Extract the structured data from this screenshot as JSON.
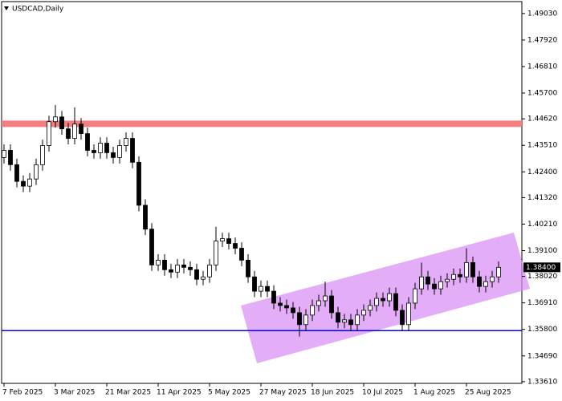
{
  "chart_data": {
    "type": "candlestick",
    "title": "USDCAD,Daily",
    "x": [
      "7 Feb 2025",
      null,
      null,
      null,
      null,
      null,
      null,
      null,
      "3 Mar 2025",
      null,
      null,
      null,
      null,
      null,
      null,
      null,
      "21 Mar 2025",
      null,
      null,
      null,
      null,
      null,
      null,
      null,
      "11 Apr 2025",
      null,
      null,
      null,
      null,
      null,
      null,
      null,
      "5 May 2025",
      null,
      null,
      null,
      null,
      null,
      null,
      null,
      "27 May 2025",
      null,
      null,
      null,
      null,
      null,
      null,
      null,
      "18 Jun 2025",
      null,
      null,
      null,
      null,
      null,
      null,
      null,
      "10 Jul 2025",
      null,
      null,
      null,
      null,
      null,
      null,
      null,
      "1 Aug 2025",
      null,
      null,
      null,
      null,
      null,
      null,
      null,
      "25 Aug 2025",
      null,
      null,
      null,
      null,
      null
    ],
    "open": [
      1.43,
      1.433,
      1.427,
      1.42,
      1.418,
      1.421,
      1.427,
      1.435,
      1.445,
      1.447,
      1.442,
      1.438,
      1.444,
      1.44,
      1.433,
      1.432,
      1.436,
      1.432,
      1.43,
      1.435,
      1.438,
      1.428,
      1.41,
      1.4,
      1.385,
      1.387,
      1.383,
      1.382,
      1.385,
      1.384,
      1.383,
      1.379,
      1.38,
      1.385,
      1.395,
      1.396,
      1.394,
      1.392,
      1.387,
      1.38,
      1.374,
      1.376,
      1.374,
      1.369,
      1.368,
      1.367,
      1.365,
      1.36,
      1.364,
      1.368,
      1.37,
      1.372,
      1.365,
      1.361,
      1.362,
      1.36,
      1.364,
      1.366,
      1.368,
      1.371,
      1.37,
      1.373,
      1.366,
      1.36,
      1.369,
      1.375,
      1.38,
      1.377,
      1.375,
      1.378,
      1.379,
      1.381,
      1.38,
      1.386,
      1.38,
      1.376,
      1.378,
      1.38
    ],
    "high": [
      1.4355,
      1.4355,
      1.4295,
      1.4225,
      1.4235,
      1.4295,
      1.4375,
      1.4475,
      1.452,
      1.4495,
      1.4445,
      1.451,
      1.4465,
      1.4425,
      1.4355,
      1.4385,
      1.4385,
      1.4345,
      1.4375,
      1.4405,
      1.4405,
      1.4305,
      1.4125,
      1.4025,
      1.3895,
      1.3895,
      1.3855,
      1.3875,
      1.3875,
      1.3865,
      1.3855,
      1.3825,
      1.3875,
      1.401,
      1.3985,
      1.3985,
      1.3965,
      1.3945,
      1.3895,
      1.3825,
      1.3785,
      1.3785,
      1.3765,
      1.3715,
      1.3705,
      1.3695,
      1.3675,
      1.3665,
      1.3705,
      1.3725,
      1.378,
      1.3745,
      1.3675,
      1.3645,
      1.3645,
      1.3665,
      1.3685,
      1.3705,
      1.3735,
      1.3735,
      1.3755,
      1.3755,
      1.3685,
      1.3715,
      1.3775,
      1.386,
      1.3825,
      1.3795,
      1.3805,
      1.3815,
      1.3835,
      1.3835,
      1.392,
      1.3885,
      1.3825,
      1.3805,
      1.3825,
      1.3865
    ],
    "low": [
      1.4275,
      1.4245,
      1.4175,
      1.4155,
      1.4155,
      1.4185,
      1.4245,
      1.4325,
      1.4425,
      1.4395,
      1.4355,
      1.4355,
      1.4375,
      1.4305,
      1.4295,
      1.4295,
      1.4295,
      1.4275,
      1.4275,
      1.4325,
      1.4255,
      1.4075,
      1.3975,
      1.3825,
      1.3825,
      1.3805,
      1.3795,
      1.3795,
      1.3815,
      1.3805,
      1.3765,
      1.3765,
      1.3775,
      1.3825,
      1.3925,
      1.3915,
      1.3895,
      1.3845,
      1.3775,
      1.3715,
      1.3715,
      1.3715,
      1.3665,
      1.3655,
      1.3645,
      1.3625,
      1.355,
      1.3575,
      1.3615,
      1.3655,
      1.3675,
      1.3625,
      1.3585,
      1.3585,
      1.3575,
      1.3575,
      1.3615,
      1.3635,
      1.3655,
      1.3675,
      1.3675,
      1.3635,
      1.3575,
      1.3575,
      1.3665,
      1.3725,
      1.3745,
      1.3725,
      1.3725,
      1.3755,
      1.3765,
      1.3775,
      1.3775,
      1.3775,
      1.3735,
      1.3735,
      1.3755,
      1.3775
    ],
    "close": [
      1.433,
      1.427,
      1.42,
      1.418,
      1.421,
      1.427,
      1.435,
      1.445,
      1.447,
      1.442,
      1.438,
      1.444,
      1.44,
      1.433,
      1.432,
      1.436,
      1.432,
      1.43,
      1.435,
      1.438,
      1.428,
      1.41,
      1.4,
      1.385,
      1.387,
      1.383,
      1.382,
      1.385,
      1.384,
      1.383,
      1.379,
      1.38,
      1.385,
      1.395,
      1.396,
      1.394,
      1.392,
      1.387,
      1.38,
      1.374,
      1.376,
      1.374,
      1.369,
      1.368,
      1.367,
      1.365,
      1.36,
      1.364,
      1.368,
      1.37,
      1.372,
      1.365,
      1.361,
      1.362,
      1.36,
      1.364,
      1.366,
      1.368,
      1.371,
      1.37,
      1.373,
      1.366,
      1.36,
      1.369,
      1.375,
      1.38,
      1.377,
      1.375,
      1.378,
      1.379,
      1.381,
      1.38,
      1.386,
      1.38,
      1.376,
      1.378,
      1.38,
      1.384
    ],
    "up_color": "#ffffff",
    "down_color": "#000000",
    "ylim": [
      1.3354,
      1.4953
    ],
    "yticks": [
      {
        "value": 1.4903,
        "label": "1.49030"
      },
      {
        "value": 1.4792,
        "label": "1.47920"
      },
      {
        "value": 1.4681,
        "label": "1.46810"
      },
      {
        "value": 1.457,
        "label": "1.45700"
      },
      {
        "value": 1.4462,
        "label": "1.44620"
      },
      {
        "value": 1.4351,
        "label": "1.43510"
      },
      {
        "value": 1.424,
        "label": "1.42400"
      },
      {
        "value": 1.4132,
        "label": "1.41320"
      },
      {
        "value": 1.4021,
        "label": "1.40210"
      },
      {
        "value": 1.391,
        "label": "1.39100"
      },
      {
        "value": 1.3802,
        "label": "1.38020"
      },
      {
        "value": 1.3691,
        "label": "1.36910"
      },
      {
        "value": 1.358,
        "label": "1.35800"
      },
      {
        "value": 1.3469,
        "label": "1.34690"
      },
      {
        "value": 1.3361,
        "label": "1.33610"
      }
    ],
    "last_price": {
      "value": 1.384,
      "label": "1.38400"
    },
    "levels": [
      {
        "value": 1.4441,
        "color": "#f28080"
      },
      {
        "value": 1.3575,
        "color": "#0000ff"
      }
    ]
  }
}
